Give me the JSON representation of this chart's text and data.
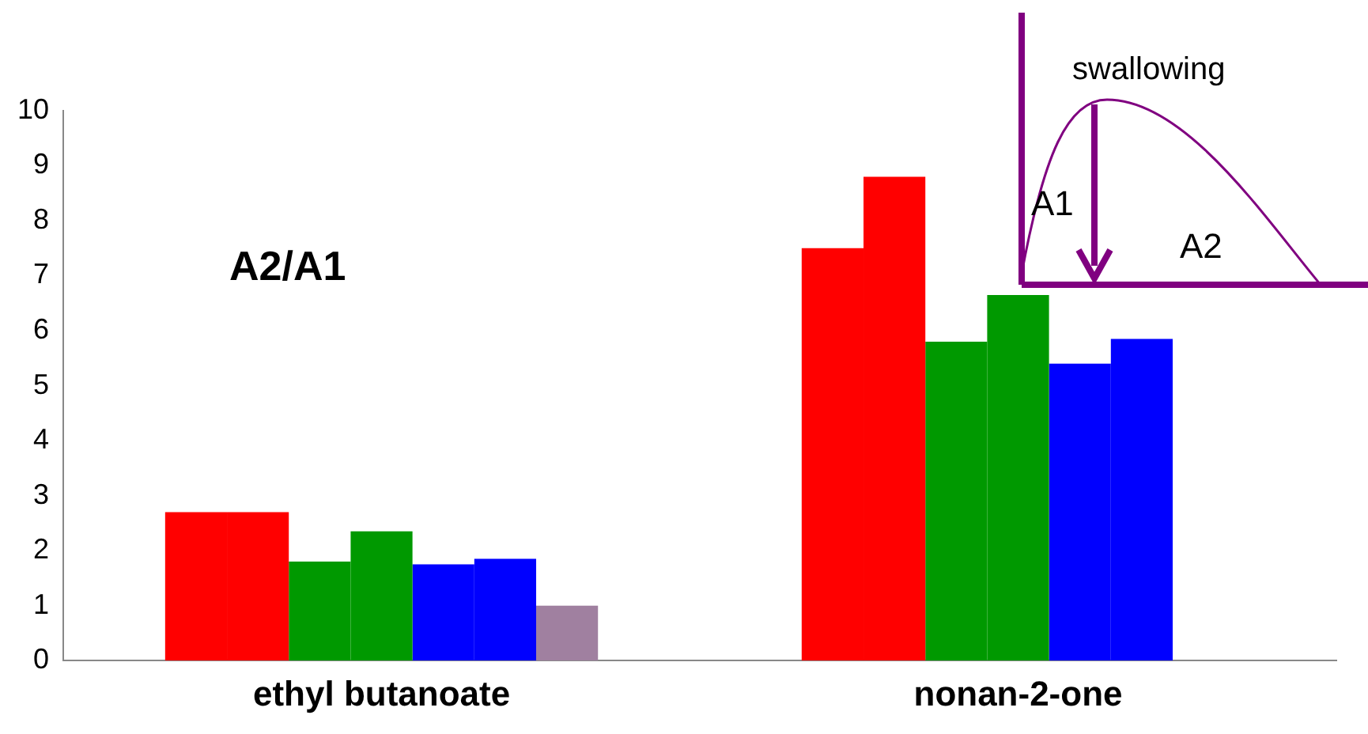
{
  "chart_data": {
    "type": "bar",
    "categories": [
      "ethyl butanoate",
      "nonan-2-one"
    ],
    "series": [
      {
        "color": "#ff0000",
        "values": [
          2.7,
          7.5
        ]
      },
      {
        "color": "#ff0000",
        "values": [
          2.7,
          8.8
        ]
      },
      {
        "color": "#009900",
        "values": [
          1.8,
          5.8
        ]
      },
      {
        "color": "#009900",
        "values": [
          2.35,
          6.65
        ]
      },
      {
        "color": "#0000ff",
        "values": [
          1.75,
          5.4
        ]
      },
      {
        "color": "#0000ff",
        "values": [
          1.85,
          5.85
        ]
      },
      {
        "color": "#a080a0",
        "values": [
          1.0,
          null
        ]
      }
    ],
    "ylim": [
      0,
      10
    ],
    "yticks": [
      0,
      1,
      2,
      3,
      4,
      5,
      6,
      7,
      8,
      9,
      10
    ],
    "grid": false,
    "legend": false,
    "annotations": [
      "A2/A1",
      "swallowing",
      "A1",
      "A2"
    ]
  }
}
